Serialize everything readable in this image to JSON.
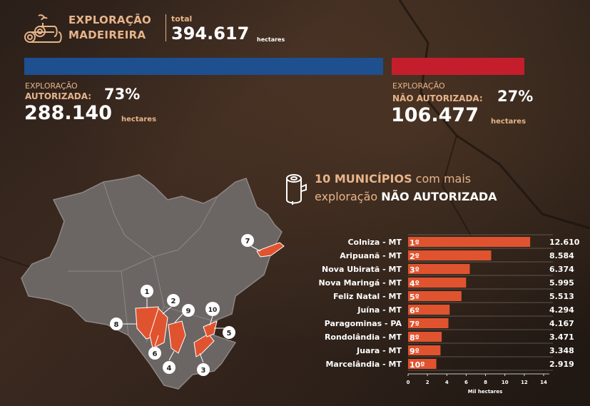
{
  "header": {
    "title_line1": "EXPLORAÇÃO",
    "title_line2": "MADEIREIRA",
    "total_label": "total",
    "total_value": "394.617",
    "total_unit": "hectares"
  },
  "authorized": {
    "label_small": "EXPLORAÇÃO",
    "label_kind": "AUTORIZADA:",
    "percent": "73%",
    "value": "288.140",
    "unit": "hectares",
    "color": "#1e4f8f"
  },
  "unauthorized": {
    "label_small": "EXPLORAÇÃO",
    "label_kind": "NÃO AUTORIZADA:",
    "percent": "27%",
    "value": "106.477",
    "unit": "hectares",
    "color": "#c41e2d"
  },
  "ranking_title": {
    "part1": "10 MUNICÍPIOS",
    "part2": " com mais",
    "part3": "exploração ",
    "part4": "NÃO AUTORIZADA"
  },
  "map": {
    "markers": [
      "1",
      "2",
      "3",
      "4",
      "5",
      "6",
      "7",
      "8",
      "9",
      "10"
    ]
  },
  "chart_data": {
    "type": "bar",
    "orientation": "horizontal",
    "categories": [
      "Colniza - MT",
      "Aripuanã - MT",
      "Nova Ubiratã - MT",
      "Nova Maringá - MT",
      "Feliz Natal - MT",
      "Juína - MT",
      "Paragominas - PA",
      "Rondolândia - MT",
      "Juara - MT",
      "Marcelândia - MT"
    ],
    "ranks": [
      "1º",
      "2º",
      "3º",
      "4º",
      "5º",
      "6º",
      "7º",
      "8º",
      "9º",
      "10º"
    ],
    "values": [
      12.61,
      8.584,
      6.374,
      5.995,
      5.513,
      4.294,
      4.167,
      3.471,
      3.348,
      2.919
    ],
    "value_labels": [
      "12.610",
      "8.584",
      "6.374",
      "5.995",
      "5.513",
      "4.294",
      "4.167",
      "3.471",
      "3.348",
      "2.919"
    ],
    "xlabel": "Mil hectares",
    "xticks": [
      "0",
      "2",
      "4",
      "6",
      "8",
      "10",
      "12",
      "14"
    ],
    "xlim": [
      0,
      14
    ],
    "bar_color": "#e0532f",
    "grid": true
  }
}
